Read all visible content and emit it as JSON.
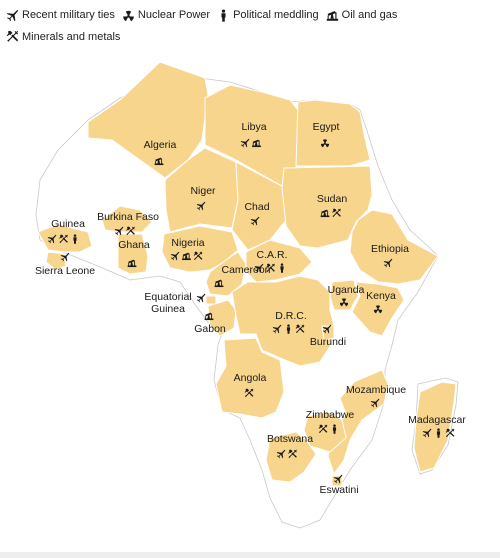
{
  "legend": [
    {
      "key": "military",
      "label": "Recent military ties",
      "icon": "jet-icon"
    },
    {
      "key": "nuclear",
      "label": "Nuclear Power",
      "icon": "radiation-icon"
    },
    {
      "key": "political",
      "label": "Political meddling",
      "icon": "person-icon"
    },
    {
      "key": "oil",
      "label": "Oil and gas",
      "icon": "oil-pump-icon"
    },
    {
      "key": "minerals",
      "label": "Minerals and metals",
      "icon": "hammer-pick-icon"
    }
  ],
  "countries": [
    {
      "name": "Algeria",
      "ties": [
        "oil"
      ]
    },
    {
      "name": "Libya",
      "ties": [
        "military",
        "oil"
      ]
    },
    {
      "name": "Egypt",
      "ties": [
        "nuclear"
      ]
    },
    {
      "name": "Niger",
      "ties": [
        "military"
      ]
    },
    {
      "name": "Chad",
      "ties": [
        "military"
      ]
    },
    {
      "name": "Sudan",
      "ties": [
        "oil",
        "minerals"
      ]
    },
    {
      "name": "Guinea",
      "ties": [
        "military",
        "minerals",
        "political"
      ]
    },
    {
      "name": "Burkina Faso",
      "ties": [
        "military",
        "minerals"
      ]
    },
    {
      "name": "Ghana",
      "ties": [
        "oil"
      ]
    },
    {
      "name": "Sierra Leone",
      "ties": [
        "military"
      ]
    },
    {
      "name": "Nigeria",
      "ties": [
        "military",
        "oil",
        "minerals"
      ]
    },
    {
      "name": "Cameroon",
      "ties": [
        "oil"
      ]
    },
    {
      "name": "C.A.R.",
      "ties": [
        "military",
        "minerals",
        "political"
      ]
    },
    {
      "name": "Ethiopia",
      "ties": [
        "military"
      ]
    },
    {
      "name": "Equatorial Guinea",
      "ties": [
        "military"
      ]
    },
    {
      "name": "Gabon",
      "ties": [
        "oil"
      ]
    },
    {
      "name": "Uganda",
      "ties": [
        "nuclear"
      ]
    },
    {
      "name": "Kenya",
      "ties": [
        "nuclear"
      ]
    },
    {
      "name": "D.R.C.",
      "ties": [
        "military",
        "political",
        "minerals"
      ]
    },
    {
      "name": "Burundi",
      "ties": [
        "military"
      ]
    },
    {
      "name": "Angola",
      "ties": [
        "minerals"
      ]
    },
    {
      "name": "Mozambique",
      "ties": [
        "military"
      ]
    },
    {
      "name": "Zimbabwe",
      "ties": [
        "minerals",
        "political"
      ]
    },
    {
      "name": "Madagascar",
      "ties": [
        "military",
        "political",
        "minerals"
      ]
    },
    {
      "name": "Botswana",
      "ties": [
        "military",
        "minerals"
      ]
    },
    {
      "name": "Eswatini",
      "ties": [
        "military"
      ]
    }
  ],
  "colors": {
    "highlight": "#f8d58c",
    "border": "#ffffff",
    "land": "#ffffff",
    "icon": "#1a1a1a"
  }
}
